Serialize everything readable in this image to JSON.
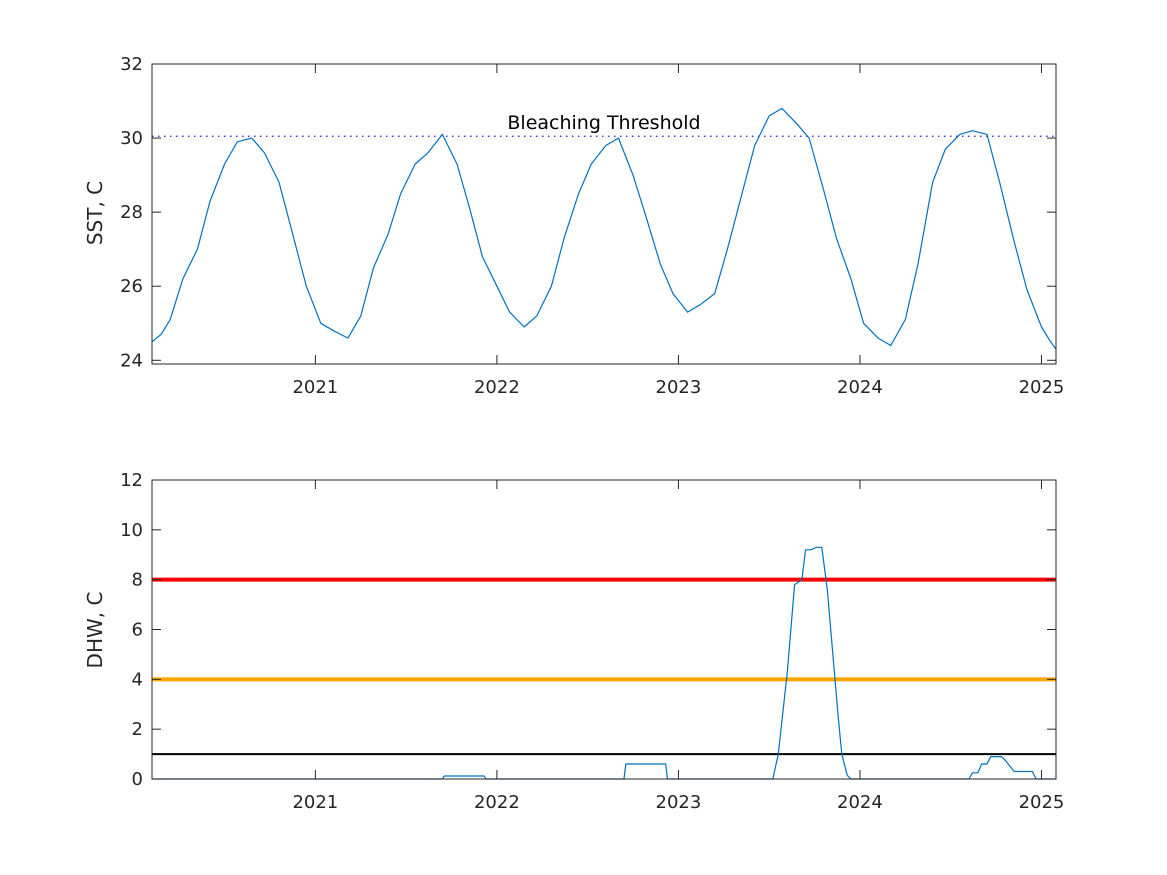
{
  "chart_data": [
    {
      "type": "line",
      "ylabel": "SST, C",
      "xlim": [
        2020.1,
        2025.08
      ],
      "ylim": [
        23.9,
        32
      ],
      "yticks": [
        24,
        26,
        28,
        30,
        32
      ],
      "xticks": [
        2021,
        2022,
        2023,
        2024,
        2025
      ],
      "grid": false,
      "threshold": {
        "value": 30.05,
        "label": "Bleaching Threshold",
        "style": "dotted",
        "color": "#1f1fcf"
      },
      "series": [
        {
          "color": "#0072BD",
          "x": [
            2020.1,
            2020.15,
            2020.2,
            2020.27,
            2020.35,
            2020.42,
            2020.5,
            2020.57,
            2020.65,
            2020.72,
            2020.8,
            2020.87,
            2020.95,
            2021.03,
            2021.1,
            2021.18,
            2021.25,
            2021.32,
            2021.4,
            2021.47,
            2021.55,
            2021.62,
            2021.7,
            2021.78,
            2021.85,
            2021.92,
            2022.0,
            2022.07,
            2022.15,
            2022.22,
            2022.3,
            2022.37,
            2022.45,
            2022.52,
            2022.6,
            2022.67,
            2022.75,
            2022.82,
            2022.9,
            2022.97,
            2023.05,
            2023.12,
            2023.2,
            2023.27,
            2023.35,
            2023.42,
            2023.5,
            2023.57,
            2023.65,
            2023.72,
            2023.8,
            2023.87,
            2023.95,
            2024.02,
            2024.1,
            2024.17,
            2024.25,
            2024.32,
            2024.4,
            2024.47,
            2024.55,
            2024.62,
            2024.7,
            2024.77,
            2024.85,
            2024.92,
            2025.0,
            2025.05,
            2025.08
          ],
          "y": [
            24.5,
            24.7,
            25.1,
            26.2,
            27.0,
            28.3,
            29.3,
            29.9,
            30.0,
            29.6,
            28.8,
            27.5,
            26.0,
            25.0,
            24.8,
            24.6,
            25.2,
            26.5,
            27.4,
            28.5,
            29.3,
            29.6,
            30.1,
            29.3,
            28.1,
            26.8,
            26.0,
            25.3,
            24.9,
            25.2,
            26.0,
            27.3,
            28.5,
            29.3,
            29.8,
            30.0,
            29.0,
            27.9,
            26.6,
            25.8,
            25.3,
            25.5,
            25.8,
            27.0,
            28.5,
            29.8,
            30.6,
            30.8,
            30.4,
            30.0,
            28.6,
            27.3,
            26.2,
            25.0,
            24.6,
            24.4,
            25.1,
            26.6,
            28.8,
            29.7,
            30.1,
            30.2,
            30.1,
            28.8,
            27.2,
            25.9,
            24.9,
            24.5,
            24.3
          ]
        }
      ]
    },
    {
      "type": "line",
      "ylabel": "DHW, C",
      "xlim": [
        2020.1,
        2025.08
      ],
      "ylim": [
        0,
        12
      ],
      "yticks": [
        0,
        2,
        4,
        6,
        8,
        10,
        12
      ],
      "xticks": [
        2021,
        2022,
        2023,
        2024,
        2025
      ],
      "grid": false,
      "reference_lines": [
        {
          "value": 8,
          "color": "#ff0000"
        },
        {
          "value": 4,
          "color": "#ffa500"
        },
        {
          "value": 1,
          "color": "#000000"
        }
      ],
      "series": [
        {
          "color": "#0072BD",
          "x": [
            2020.1,
            2021.7,
            2021.71,
            2021.93,
            2021.94,
            2022.7,
            2022.71,
            2022.93,
            2022.94,
            2023.52,
            2023.55,
            2023.6,
            2023.64,
            2023.68,
            2023.7,
            2023.73,
            2023.76,
            2023.79,
            2023.82,
            2023.88,
            2023.9,
            2023.93,
            2023.95,
            2024.6,
            2024.62,
            2024.65,
            2024.67,
            2024.7,
            2024.72,
            2024.75,
            2024.78,
            2024.8,
            2024.85,
            2024.88,
            2024.95,
            2024.97,
            2025.08
          ],
          "y": [
            0,
            0,
            0.12,
            0.12,
            0,
            0,
            0.6,
            0.6,
            0,
            0,
            1.0,
            4.3,
            7.8,
            8.0,
            9.2,
            9.2,
            9.3,
            9.3,
            7.6,
            2.5,
            1.0,
            0.15,
            0,
            0,
            0.25,
            0.25,
            0.6,
            0.6,
            0.9,
            0.9,
            0.9,
            0.75,
            0.3,
            0.3,
            0.3,
            0,
            0
          ]
        }
      ]
    }
  ]
}
